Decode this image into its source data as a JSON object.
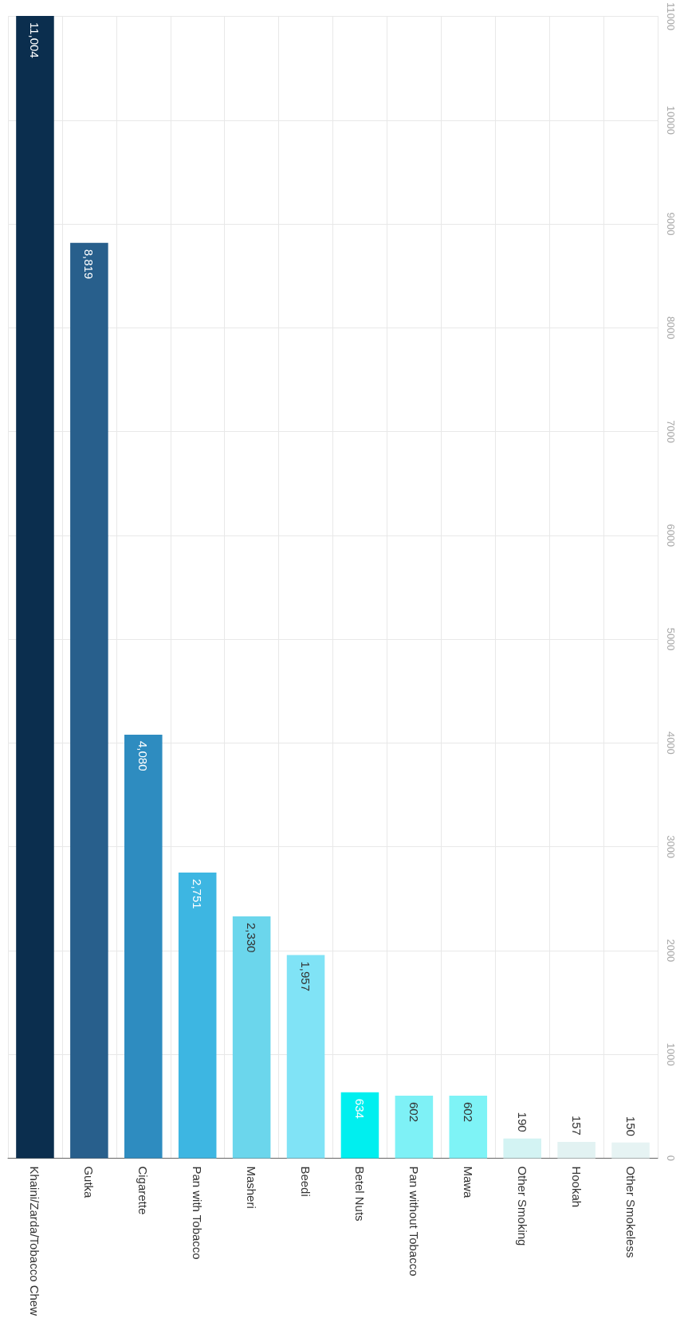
{
  "chart_data": {
    "type": "bar",
    "categories": [
      "Khaini/Zarda/Tobacco Chew",
      "Gutka",
      "Cigarette",
      "Pan with Tobacco",
      "Masheri",
      "Beedi",
      "Betel Nuts",
      "Pan without Tobacco",
      "Mawa",
      "Other Smoking",
      "Hookah",
      "Other Smokeless"
    ],
    "values": [
      11004,
      8819,
      4080,
      2751,
      2330,
      1957,
      634,
      602,
      602,
      190,
      157,
      150
    ],
    "value_labels": [
      "11,004",
      "8,819",
      "4,080",
      "2,751",
      "2,330",
      "1,957",
      "634",
      "602",
      "602",
      "190",
      "157",
      "150"
    ],
    "colors": [
      "#0b2e4e",
      "#285f8c",
      "#2e8cc0",
      "#3db6e2",
      "#6bd6ec",
      "#80e3f6",
      "#00efef",
      "#7ef1f6",
      "#7ef3f6",
      "#d3f3f3",
      "#e2f2f2",
      "#e6f3f3"
    ],
    "ylim": [
      0,
      11004
    ],
    "yticks": [
      0,
      1000,
      2000,
      3000,
      4000,
      5000,
      6000,
      7000,
      8000,
      9000,
      10000,
      11000
    ],
    "grid": true
  }
}
